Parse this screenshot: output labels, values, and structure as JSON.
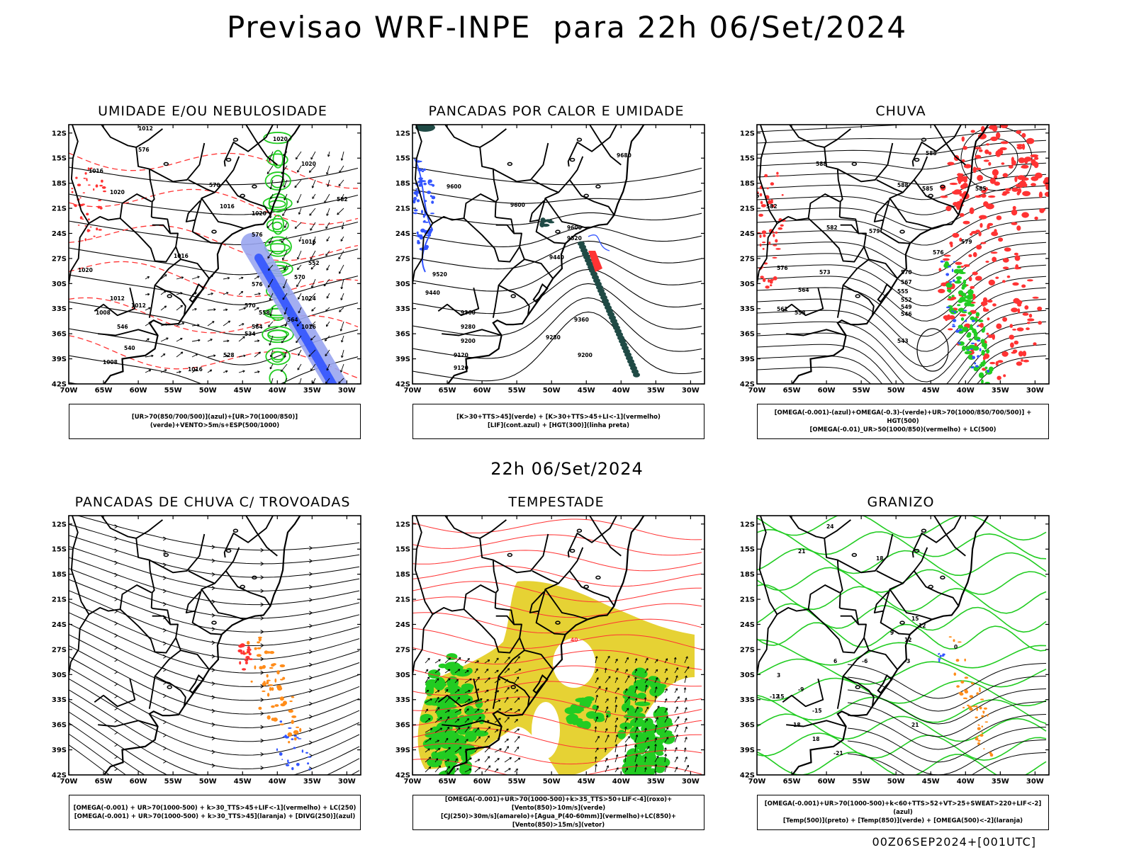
{
  "page": {
    "title": "Previsao WRF-INPE  para 22h 06/Set/2024",
    "mid_title": "22h 06/Set/2024",
    "footer": "00Z06SEP2024+[001UTC]"
  },
  "axes": {
    "lat_labels": [
      "12S",
      "15S",
      "18S",
      "21S",
      "24S",
      "27S",
      "30S",
      "33S",
      "36S",
      "39S",
      "42S"
    ],
    "lon_labels": [
      "70W",
      "65W",
      "60W",
      "55W",
      "50W",
      "45W",
      "40W",
      "35W",
      "30W"
    ]
  },
  "colors": {
    "red": "#ff3333",
    "green": "#22cc22",
    "blue": "#3355ff",
    "yellow": "#e6d234",
    "orange": "#ff8c1a",
    "teal": "#1f4a45",
    "lilac": "#9aa6f0"
  },
  "panels": [
    {
      "id": "umidade",
      "type": "umidade",
      "title": "UMIDADE E/OU NEBULOSIDADE",
      "legend": [
        "[UR>70(850/700/500)](azul)+[UR>70(1000/850)](verde)+VENTO>5m/s+ESP(500/1000)"
      ],
      "contour_labels": [
        "1012",
        "1020",
        "1020",
        "1016",
        "1020",
        "1016",
        "1020",
        "1016",
        "1016",
        "1024",
        "1020",
        "1012",
        "1008",
        "1016",
        "1016",
        "1008",
        "1012",
        "576",
        "576",
        "570",
        "570",
        "576",
        "570",
        "564",
        "564",
        "558",
        "552",
        "546",
        "540",
        "534",
        "528",
        "582"
      ]
    },
    {
      "id": "pancadas_calor",
      "type": "pancadas_calor",
      "title": "PANCADAS POR CALOR E UMIDADE",
      "legend": [
        "[K>30+TTS>45](verde) + [K>30+TTS>45+LI<-1](vermelho)",
        "[LIF](cont.azul) + [HGT(300)](linha preta)"
      ],
      "contour_labels": [
        "9680",
        "9600",
        "9600",
        "9600",
        "9520",
        "9520",
        "9440",
        "9440",
        "9360",
        "9360",
        "9280",
        "9280",
        "9200",
        "9200",
        "9120",
        "9120"
      ]
    },
    {
      "id": "chuva",
      "type": "chuva",
      "title": "CHUVA",
      "legend": [
        "[OMEGA(-0.001)-(azul)+OMEGA(-0.3)-(verde)+UR>70(1000/850/700/500)] + HGT(500)",
        "[OMEGA(-0.01)_UR>50(1000/850)(vermelho) + LC(500)"
      ],
      "contour_labels": [
        "588",
        "588",
        "588",
        "585",
        "585",
        "585",
        "582",
        "582",
        "579",
        "579",
        "576",
        "576",
        "573",
        "570",
        "567",
        "564",
        "561",
        "558",
        "555",
        "552",
        "549",
        "546",
        "543"
      ]
    },
    {
      "id": "trovoadas",
      "type": "trovoadas",
      "title": "PANCADAS DE CHUVA C/ TROVOADAS",
      "legend": [
        "[OMEGA(-0.001) + UR>70(1000-500) + k>30_TTS>45+LIF<-1](vermelho) + LC(250)",
        "[OMEGA(-0.001) + UR>70(1000-500) + k>30_TTS>45](laranja) + [DIVG(250)](azul)"
      ],
      "contour_labels": []
    },
    {
      "id": "tempestade",
      "type": "tempestade",
      "title": "TEMPESTADE",
      "legend": [
        "[OMEGA(-0.001)+UR>70(1000-500)+k>35_TTS>50+LIF<-4](roxo)+[Vento(850)>10m/s](verde)",
        "[CJ(250)>30m/s](amarelo)+[Agua_P(40-60mm)](vermelho)+LC(850)+[Vento(850)>15m/s](vetor)"
      ],
      "contour_labels": [
        "40"
      ]
    },
    {
      "id": "granizo",
      "type": "granizo",
      "title": "GRANIZO",
      "legend": [
        "[OMEGA(-0.001)+UR>70(1000-500)+k<60+TTS>52+VT>25+SWEAT>220+LIF<-2](azul)",
        "[Temp(500)](preto) + [Temp(850)](verde) + [OMEGA(500)<-2](laranja)"
      ],
      "contour_labels": [
        "24",
        "21",
        "18",
        "15",
        "12",
        "9",
        "6",
        "3",
        "0",
        "-3",
        "-6",
        "-9",
        "-12",
        "-15",
        "-18",
        "-21",
        "21",
        "18",
        "15",
        "12"
      ]
    }
  ]
}
